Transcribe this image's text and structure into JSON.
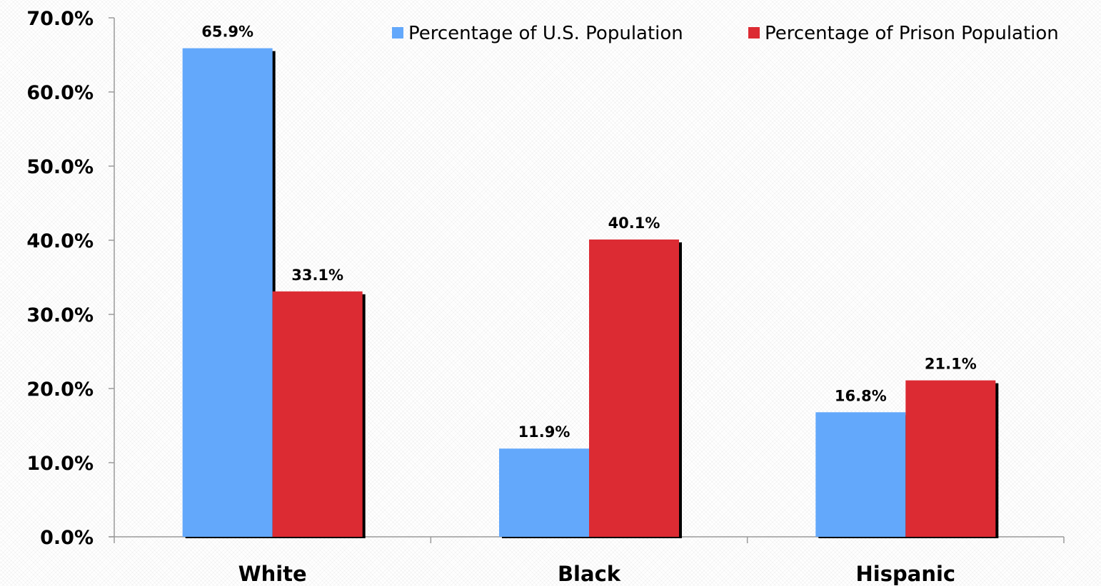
{
  "chart_data": {
    "type": "bar",
    "categories": [
      "White",
      "Black",
      "Hispanic"
    ],
    "series": [
      {
        "name": "Percentage of U.S. Population",
        "color": "#63a8fb",
        "values": [
          65.9,
          11.9,
          16.8
        ],
        "labels": [
          "65.9%",
          "11.9%",
          "16.8%"
        ]
      },
      {
        "name": "Percentage of Prison Population",
        "color": "#dc2b33",
        "values": [
          33.1,
          40.1,
          21.1
        ],
        "labels": [
          "33.1%",
          "40.1%",
          "21.1%"
        ]
      }
    ],
    "ylim": [
      0,
      70
    ],
    "yticks": [
      0,
      10,
      20,
      30,
      40,
      50,
      60,
      70
    ],
    "ytick_labels": [
      "0.0%",
      "10.0%",
      "20.0%",
      "30.0%",
      "40.0%",
      "50.0%",
      "60.0%",
      "70.0%"
    ],
    "legend_position": "top-right",
    "grid": false,
    "title": "",
    "xlabel": "",
    "ylabel": ""
  }
}
